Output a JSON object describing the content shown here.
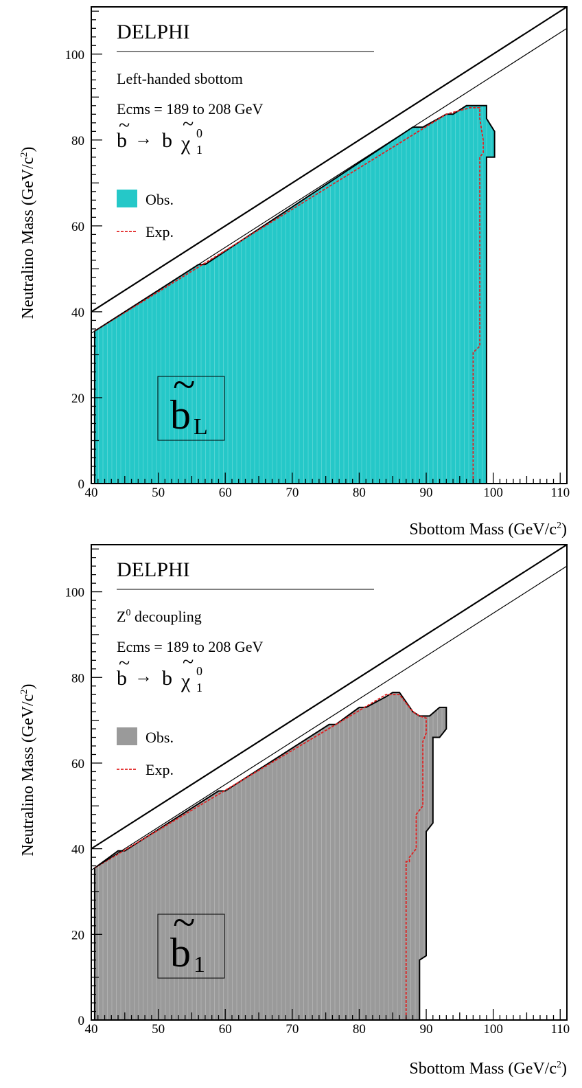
{
  "charts": [
    {
      "title": "DELPHI",
      "process": "Left-handed sbottom",
      "energy": "Ecms = 189 to 208 GeV",
      "decay": {
        "parent": "b",
        "arrow": "→",
        "daughter": "b",
        "chi": "χ",
        "chi_sup": "0",
        "chi_sub": "1"
      },
      "legend": {
        "obs_label": "Obs.",
        "exp_label": "Exp."
      },
      "inset": {
        "symbol": "b",
        "subscript": "L"
      },
      "xlabel": {
        "main": "Sbottom Mass (GeV/c",
        "sup": "2",
        "close": ")"
      },
      "ylabel": {
        "main": "Neutralino Mass (GeV/c",
        "sup": "2",
        "close": ")"
      },
      "x_ticks": [
        "40",
        "50",
        "60",
        "70",
        "80",
        "90",
        "100",
        "110"
      ],
      "y_ticks": [
        "0",
        "20",
        "40",
        "60",
        "80",
        "100"
      ],
      "fill_color": "#25c8c8",
      "chart_data": {
        "type": "area",
        "xlim": [
          40,
          111
        ],
        "ylim": [
          0,
          111
        ],
        "grid": false,
        "legend_position": "left, middle",
        "series": [
          {
            "name": "Obs.",
            "points": [
              [
                40.5,
                0
              ],
              [
                40.5,
                35.5
              ],
              [
                56,
                51
              ],
              [
                57,
                51
              ],
              [
                88,
                83
              ],
              [
                89.5,
                83
              ],
              [
                93,
                86
              ],
              [
                94,
                86
              ],
              [
                96,
                88
              ],
              [
                99,
                88
              ],
              [
                99,
                85
              ],
              [
                100.2,
                82
              ],
              [
                100.2,
                76
              ],
              [
                99,
                76
              ],
              [
                99,
                0
              ]
            ]
          },
          {
            "name": "Exp.",
            "points": [
              [
                40.5,
                35.5
              ],
              [
                93,
                86
              ],
              [
                96.5,
                87.5
              ],
              [
                98,
                87.5
              ],
              [
                98,
                85
              ],
              [
                98.5,
                80
              ],
              [
                98.5,
                77
              ],
              [
                98,
                76
              ],
              [
                98,
                32
              ],
              [
                97,
                30.5
              ],
              [
                97,
                0
              ]
            ]
          }
        ],
        "lines": [
          {
            "points": [
              [
                40,
                40
              ],
              [
                111,
                111
              ]
            ]
          },
          {
            "points": [
              [
                40,
                35
              ],
              [
                111,
                106
              ]
            ]
          }
        ]
      }
    },
    {
      "title": "DELPHI",
      "process": "Z",
      "process_sup": "0",
      "process_rest": " decoupling",
      "energy": "Ecms = 189 to 208 GeV",
      "decay": {
        "parent": "b",
        "arrow": "→",
        "daughter": "b",
        "chi": "χ",
        "chi_sup": "0",
        "chi_sub": "1"
      },
      "legend": {
        "obs_label": "Obs.",
        "exp_label": "Exp."
      },
      "inset": {
        "symbol": "b",
        "subscript": "1"
      },
      "xlabel": {
        "main": "Sbottom Mass (GeV/c",
        "sup": "2",
        "close": ")"
      },
      "ylabel": {
        "main": "Neutralino Mass (GeV/c",
        "sup": "2",
        "close": ")"
      },
      "x_ticks": [
        "40",
        "50",
        "60",
        "70",
        "80",
        "90",
        "100",
        "110"
      ],
      "y_ticks": [
        "0",
        "20",
        "40",
        "60",
        "80",
        "100"
      ],
      "fill_color": "#9a9a9a",
      "chart_data": {
        "type": "area",
        "xlim": [
          40,
          111
        ],
        "ylim": [
          0,
          111
        ],
        "grid": false,
        "legend_position": "left, middle",
        "series": [
          {
            "name": "Obs.",
            "points": [
              [
                40.5,
                0
              ],
              [
                40.5,
                35.5
              ],
              [
                44,
                39.5
              ],
              [
                45,
                39.5
              ],
              [
                59,
                53.5
              ],
              [
                60,
                53.5
              ],
              [
                75.5,
                69
              ],
              [
                76.5,
                69
              ],
              [
                80,
                73
              ],
              [
                81,
                73
              ],
              [
                84,
                75.5
              ],
              [
                85,
                76.5
              ],
              [
                86,
                76.5
              ],
              [
                88,
                72
              ],
              [
                89,
                71
              ],
              [
                90.5,
                71
              ],
              [
                92,
                73
              ],
              [
                93,
                73
              ],
              [
                93,
                68
              ],
              [
                92,
                66
              ],
              [
                91,
                66
              ],
              [
                91,
                46
              ],
              [
                90,
                44
              ],
              [
                90,
                15
              ],
              [
                89,
                14
              ],
              [
                89,
                0
              ]
            ]
          },
          {
            "name": "Exp.",
            "points": [
              [
                40.5,
                35.5
              ],
              [
                84,
                76
              ],
              [
                85,
                76
              ],
              [
                86,
                76
              ],
              [
                88,
                72
              ],
              [
                89,
                71
              ],
              [
                90,
                70.5
              ],
              [
                90,
                67
              ],
              [
                89.5,
                65
              ],
              [
                89.5,
                50
              ],
              [
                88.5,
                48
              ],
              [
                88.5,
                40
              ],
              [
                87.5,
                38
              ],
              [
                87.5,
                37
              ],
              [
                87,
                37
              ],
              [
                87,
                0
              ]
            ]
          }
        ],
        "lines": [
          {
            "points": [
              [
                40,
                40
              ],
              [
                111,
                111
              ]
            ]
          },
          {
            "points": [
              [
                40,
                35
              ],
              [
                111,
                106
              ]
            ]
          }
        ]
      }
    }
  ]
}
